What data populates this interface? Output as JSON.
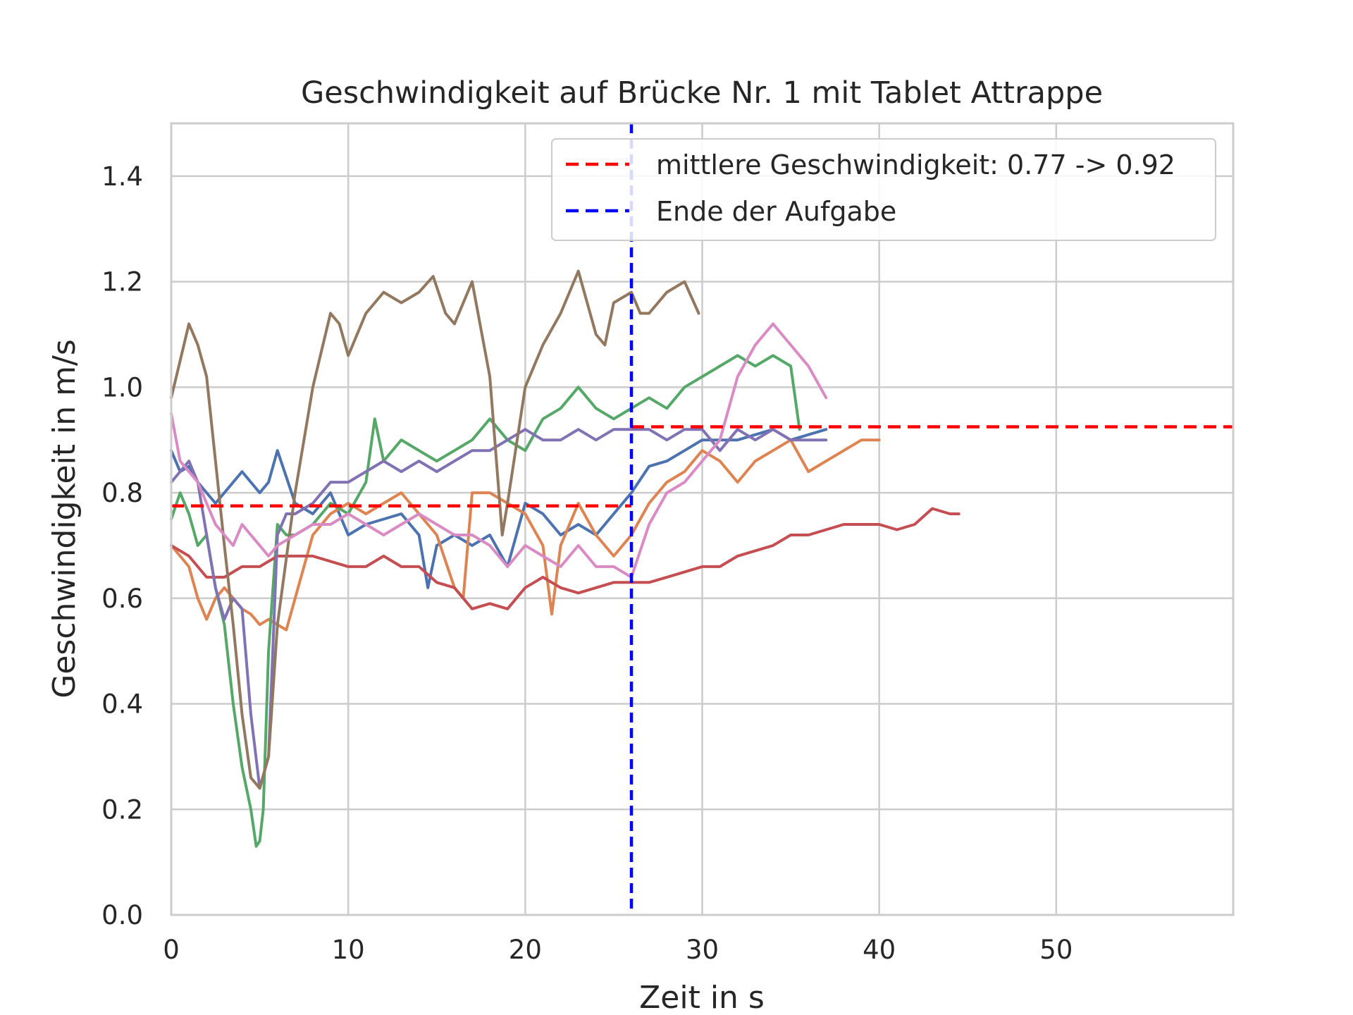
{
  "chart_data": {
    "type": "line",
    "title": "Geschwindigkeit auf Brücke Nr. 1 mit Tablet Attrappe",
    "xlabel": "Zeit in s",
    "ylabel": "Geschwindigkeit in m/s",
    "xlim": [
      0,
      60
    ],
    "ylim": [
      0,
      1.5
    ],
    "xticks": [
      "0",
      "10",
      "20",
      "30",
      "40",
      "50"
    ],
    "yticks": [
      "0.0",
      "0.2",
      "0.4",
      "0.6",
      "0.8",
      "1.0",
      "1.2",
      "1.4"
    ],
    "grid": true,
    "legend_position": "top-right",
    "legend": [
      {
        "label": "mittlere Geschwindigkeit: 0.77 -> 0.92",
        "color": "#ff0000",
        "style": "dashed"
      },
      {
        "label": "Ende der Aufgabe",
        "color": "#0000ff",
        "style": "dashed"
      }
    ],
    "reference_lines": {
      "mean_before": {
        "x": [
          0,
          26
        ],
        "y": 0.775,
        "color": "#ff0000"
      },
      "mean_after": {
        "x": [
          26,
          60
        ],
        "y": 0.925,
        "color": "#ff0000"
      },
      "task_end": {
        "x": 26,
        "color": "#0000ff"
      }
    },
    "series": [
      {
        "color": "#4c72b0",
        "x": [
          0,
          0.5,
          1,
          1.5,
          2,
          2.5,
          3,
          3.5,
          4,
          4.5,
          5,
          5.5,
          6,
          6.5,
          7,
          8,
          9,
          10,
          11,
          12,
          13,
          14,
          14.5,
          15,
          16,
          17,
          18,
          19,
          20,
          21,
          22,
          23,
          24,
          25,
          26,
          27,
          28,
          29,
          30,
          31,
          32,
          33,
          34,
          35,
          36,
          37
        ],
        "y": [
          0.88,
          0.84,
          0.85,
          0.82,
          0.8,
          0.78,
          0.8,
          0.82,
          0.84,
          0.82,
          0.8,
          0.82,
          0.88,
          0.83,
          0.78,
          0.76,
          0.8,
          0.72,
          0.74,
          0.75,
          0.76,
          0.72,
          0.62,
          0.7,
          0.72,
          0.7,
          0.72,
          0.66,
          0.78,
          0.76,
          0.72,
          0.74,
          0.72,
          0.76,
          0.8,
          0.85,
          0.86,
          0.88,
          0.9,
          0.9,
          0.9,
          0.91,
          0.92,
          0.9,
          0.91,
          0.92
        ]
      },
      {
        "color": "#dd8452",
        "x": [
          0,
          0.5,
          1,
          1.5,
          2,
          2.5,
          3,
          3.5,
          4,
          4.5,
          5,
          5.5,
          6,
          6.5,
          7,
          8,
          9,
          10,
          11,
          12,
          13,
          14,
          15,
          16,
          16.5,
          17,
          18,
          19,
          20,
          21,
          21.5,
          22,
          23,
          24,
          25,
          26,
          27,
          28,
          29,
          30,
          31,
          32,
          33,
          34,
          35,
          36,
          37,
          38,
          39,
          40
        ],
        "y": [
          0.7,
          0.68,
          0.66,
          0.6,
          0.56,
          0.6,
          0.62,
          0.6,
          0.58,
          0.57,
          0.55,
          0.56,
          0.55,
          0.54,
          0.6,
          0.72,
          0.76,
          0.78,
          0.76,
          0.78,
          0.8,
          0.76,
          0.72,
          0.62,
          0.6,
          0.8,
          0.8,
          0.78,
          0.76,
          0.7,
          0.57,
          0.7,
          0.78,
          0.72,
          0.68,
          0.72,
          0.78,
          0.82,
          0.84,
          0.88,
          0.86,
          0.82,
          0.86,
          0.88,
          0.9,
          0.84,
          0.86,
          0.88,
          0.9,
          0.9
        ]
      },
      {
        "color": "#55a868",
        "x": [
          0,
          0.5,
          1,
          1.5,
          2,
          2.5,
          3,
          3.5,
          4,
          4.5,
          4.8,
          5,
          5.2,
          5.5,
          6,
          6.5,
          7,
          8,
          9,
          10,
          11,
          11.5,
          12,
          13,
          14,
          15,
          16,
          17,
          18,
          19,
          20,
          21,
          22,
          23,
          24,
          25,
          26,
          27,
          28,
          29,
          30,
          31,
          32,
          33,
          34,
          35,
          35.5
        ],
        "y": [
          0.75,
          0.8,
          0.76,
          0.7,
          0.72,
          0.62,
          0.55,
          0.4,
          0.28,
          0.2,
          0.13,
          0.14,
          0.2,
          0.5,
          0.74,
          0.72,
          0.72,
          0.74,
          0.78,
          0.76,
          0.82,
          0.94,
          0.86,
          0.9,
          0.88,
          0.86,
          0.88,
          0.9,
          0.94,
          0.9,
          0.88,
          0.94,
          0.96,
          1.0,
          0.96,
          0.94,
          0.96,
          0.98,
          0.96,
          1.0,
          1.02,
          1.04,
          1.06,
          1.04,
          1.06,
          1.04,
          0.92
        ]
      },
      {
        "color": "#c44e52",
        "x": [
          0,
          1,
          2,
          3,
          4,
          5,
          6,
          7,
          8,
          9,
          10,
          11,
          12,
          13,
          14,
          15,
          16,
          17,
          18,
          19,
          20,
          21,
          22,
          23,
          24,
          25,
          26,
          27,
          28,
          29,
          30,
          31,
          32,
          33,
          34,
          35,
          36,
          37,
          38,
          39,
          40,
          41,
          42,
          43,
          44,
          44.5
        ],
        "y": [
          0.7,
          0.68,
          0.64,
          0.64,
          0.66,
          0.66,
          0.68,
          0.68,
          0.68,
          0.67,
          0.66,
          0.66,
          0.68,
          0.66,
          0.66,
          0.63,
          0.62,
          0.58,
          0.59,
          0.58,
          0.62,
          0.64,
          0.62,
          0.61,
          0.62,
          0.63,
          0.63,
          0.63,
          0.64,
          0.65,
          0.66,
          0.66,
          0.68,
          0.69,
          0.7,
          0.72,
          0.72,
          0.73,
          0.74,
          0.74,
          0.74,
          0.73,
          0.74,
          0.77,
          0.76,
          0.76
        ]
      },
      {
        "color": "#8172b3",
        "x": [
          0,
          0.5,
          1,
          1.5,
          2,
          2.5,
          3,
          3.5,
          4,
          4.5,
          5,
          5.5,
          6,
          6.5,
          7,
          8,
          9,
          10,
          11,
          12,
          13,
          14,
          15,
          16,
          17,
          18,
          19,
          20,
          21,
          22,
          23,
          24,
          25,
          26,
          27,
          28,
          29,
          30,
          31,
          32,
          33,
          34,
          35,
          36,
          37
        ],
        "y": [
          0.82,
          0.84,
          0.86,
          0.82,
          0.72,
          0.62,
          0.56,
          0.6,
          0.58,
          0.38,
          0.24,
          0.3,
          0.72,
          0.76,
          0.76,
          0.78,
          0.82,
          0.82,
          0.84,
          0.86,
          0.84,
          0.86,
          0.84,
          0.86,
          0.88,
          0.88,
          0.9,
          0.92,
          0.9,
          0.9,
          0.92,
          0.9,
          0.92,
          0.92,
          0.92,
          0.9,
          0.92,
          0.92,
          0.88,
          0.92,
          0.9,
          0.92,
          0.9,
          0.9,
          0.9
        ]
      },
      {
        "color": "#937860",
        "x": [
          0,
          0.5,
          1,
          1.5,
          2,
          2.5,
          3,
          3.5,
          4,
          4.5,
          5,
          5.5,
          6,
          7,
          8,
          9,
          9.5,
          10,
          11,
          12,
          13,
          14,
          14.8,
          15.5,
          16,
          17,
          18,
          18.7,
          19,
          20,
          21,
          22,
          23,
          24,
          24.5,
          25,
          26,
          26.5,
          27,
          28,
          29,
          29.8
        ],
        "y": [
          0.98,
          1.05,
          1.12,
          1.08,
          1.02,
          0.86,
          0.7,
          0.55,
          0.38,
          0.26,
          0.24,
          0.3,
          0.55,
          0.8,
          1.0,
          1.14,
          1.12,
          1.06,
          1.14,
          1.18,
          1.16,
          1.18,
          1.21,
          1.14,
          1.12,
          1.2,
          1.02,
          0.72,
          0.78,
          1.0,
          1.08,
          1.14,
          1.22,
          1.1,
          1.08,
          1.16,
          1.18,
          1.14,
          1.14,
          1.18,
          1.2,
          1.14
        ]
      },
      {
        "color": "#da8bc3",
        "x": [
          0,
          0.5,
          1,
          1.5,
          2,
          2.5,
          3,
          3.5,
          4,
          4.5,
          5,
          5.5,
          6,
          7,
          8,
          9,
          10,
          11,
          12,
          13,
          14,
          15,
          16,
          17,
          18,
          19,
          20,
          21,
          22,
          23,
          24,
          25,
          26,
          27,
          28,
          29,
          30,
          31,
          32,
          33,
          34,
          35,
          36,
          37
        ],
        "y": [
          0.95,
          0.86,
          0.84,
          0.82,
          0.78,
          0.74,
          0.72,
          0.7,
          0.74,
          0.72,
          0.7,
          0.68,
          0.7,
          0.72,
          0.74,
          0.74,
          0.76,
          0.74,
          0.72,
          0.74,
          0.76,
          0.74,
          0.72,
          0.72,
          0.7,
          0.66,
          0.7,
          0.68,
          0.66,
          0.7,
          0.66,
          0.66,
          0.64,
          0.74,
          0.8,
          0.82,
          0.86,
          0.9,
          1.02,
          1.08,
          1.12,
          1.08,
          1.04,
          0.98
        ]
      }
    ]
  }
}
